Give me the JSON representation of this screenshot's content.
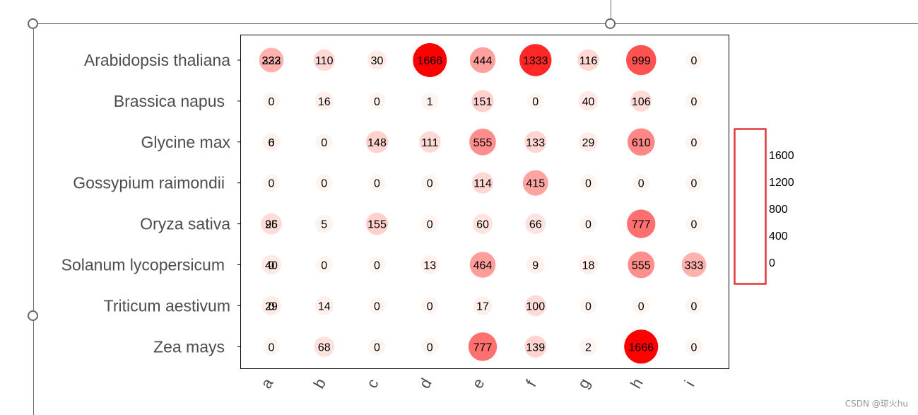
{
  "chart_data": {
    "type": "scatter",
    "title": "",
    "xlabel": "",
    "ylabel": "",
    "x_categories": [
      "a",
      "b",
      "c",
      "d",
      "e",
      "f",
      "g",
      "h",
      "i"
    ],
    "y_categories": [
      "Arabidopsis thaliana",
      "Brassica napus",
      "Glycine max",
      "Gossypium raimondii",
      "Oryza sativa",
      "Solanum lycopersicum",
      "Triticum aestivum",
      "Zea mays"
    ],
    "values": [
      [
        333,
        110,
        30,
        1666,
        444,
        1333,
        116,
        999,
        0
      ],
      [
        0,
        16,
        0,
        1,
        151,
        0,
        40,
        106,
        0
      ],
      [
        6,
        0,
        148,
        111,
        555,
        133,
        29,
        610,
        0
      ],
      [
        0,
        0,
        0,
        0,
        114,
        415,
        0,
        0,
        0
      ],
      [
        96,
        5,
        155,
        0,
        60,
        66,
        0,
        777,
        0
      ],
      [
        40,
        0,
        0,
        13,
        464,
        9,
        18,
        555,
        333
      ],
      [
        29,
        14,
        0,
        0,
        17,
        100,
        0,
        0,
        0
      ],
      [
        0,
        68,
        0,
        0,
        777,
        139,
        2,
        1666,
        0
      ]
    ],
    "overlap_labels": {
      "0-0": [
        "333",
        "222"
      ],
      "2-0": [
        "6",
        "0"
      ],
      "4-0": [
        "96",
        "25"
      ],
      "5-0": [
        "40",
        "0"
      ],
      "6-0": [
        "29",
        "0"
      ]
    },
    "legend": {
      "ticks": [
        "1600",
        "1200",
        "800",
        "400",
        "0"
      ],
      "range": [
        0,
        1666
      ],
      "highlighted": true
    },
    "color_scale": {
      "low": "#fff5f0",
      "high": "#ff0000"
    },
    "grid": false
  },
  "watermark": "CSDN @琼火hu"
}
